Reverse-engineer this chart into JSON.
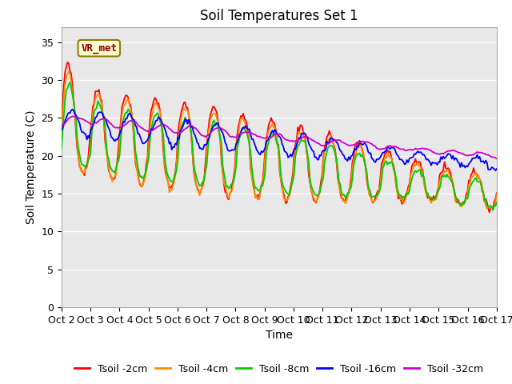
{
  "title": "Soil Temperatures Set 1",
  "xlabel": "Time",
  "ylabel": "Soil Temperature (C)",
  "ylim": [
    0,
    37
  ],
  "yticks": [
    0,
    5,
    10,
    15,
    20,
    25,
    30,
    35
  ],
  "xticklabels": [
    "Oct 2",
    "Oct 3",
    "Oct 4",
    "Oct 5",
    "Oct 6",
    "Oct 7",
    "Oct 8",
    "Oct 9",
    "Oct 10",
    "Oct 11",
    "Oct 12",
    "Oct 13",
    "Oct 14",
    "Oct 15",
    "Oct 16",
    "Oct 17"
  ],
  "annotation_text": "VR_met",
  "legend_labels": [
    "Tsoil -2cm",
    "Tsoil -4cm",
    "Tsoil -8cm",
    "Tsoil -16cm",
    "Tsoil -32cm"
  ],
  "colors": [
    "#ff0000",
    "#ff8c00",
    "#00cc00",
    "#0000ff",
    "#cc00cc"
  ],
  "plot_bg": "#e8e8e8",
  "title_fontsize": 12,
  "axis_fontsize": 10,
  "tick_fontsize": 9,
  "legend_fontsize": 9
}
